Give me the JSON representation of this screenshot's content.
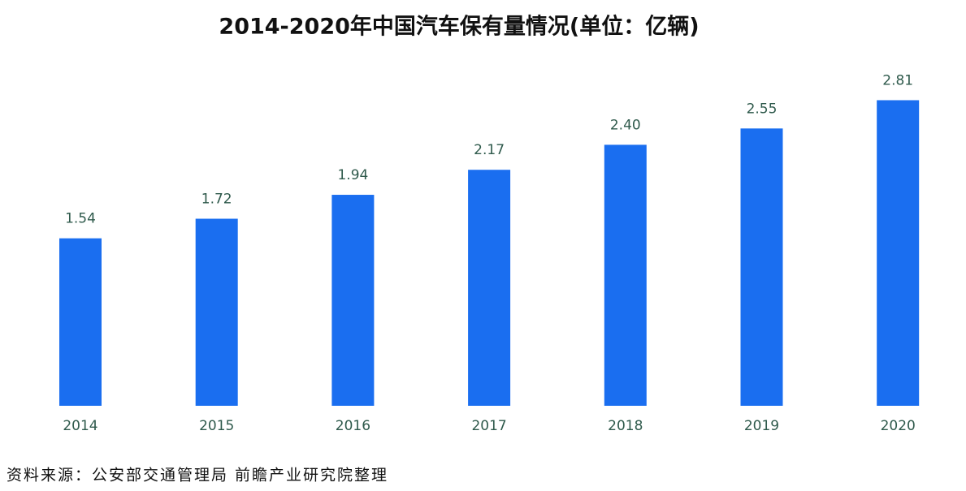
{
  "chart_data": {
    "type": "bar",
    "title": "2014-2020年中国汽车保有量情况(单位：亿辆)",
    "categories": [
      "2014",
      "2015",
      "2016",
      "2017",
      "2018",
      "2019",
      "2020"
    ],
    "values": [
      1.54,
      1.72,
      1.94,
      2.17,
      2.4,
      2.55,
      2.81
    ],
    "value_labels": [
      "1.54",
      "1.72",
      "1.94",
      "2.17",
      "2.40",
      "2.55",
      "2.81"
    ],
    "color": "#1a6ef0",
    "source": "资料来源：公安部交通管理局 前瞻产业研究院整理"
  }
}
